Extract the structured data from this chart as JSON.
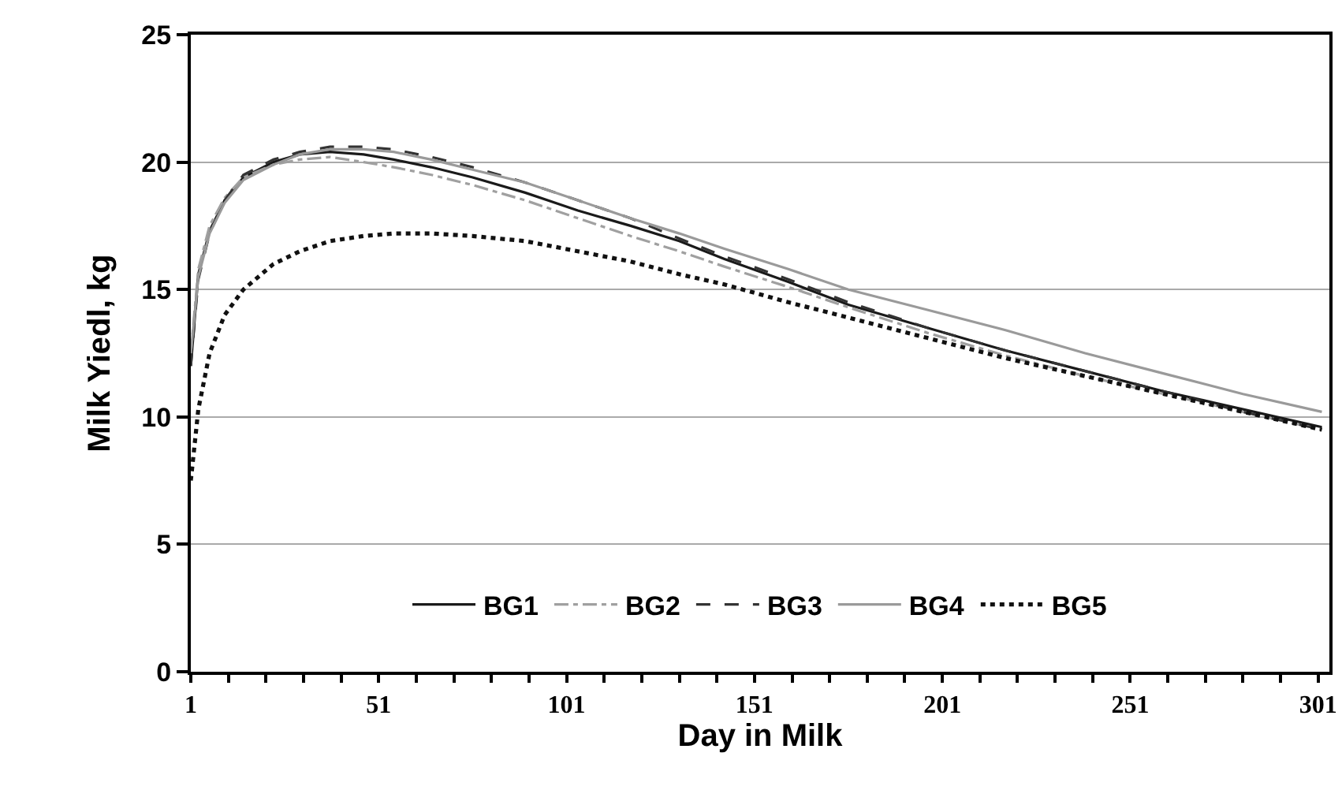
{
  "chart_data": {
    "type": "line",
    "xlabel": "Day in Milk",
    "ylabel": "Milk Yiedl, kg",
    "x": [
      1,
      3,
      6,
      10,
      15,
      23,
      30,
      38,
      47,
      55,
      65,
      76,
      90,
      104,
      118,
      131,
      143,
      160,
      176,
      197,
      218,
      239,
      260,
      281,
      302
    ],
    "series": [
      {
        "name": "BG1",
        "color": "#1a1a1a",
        "line_style": "solid",
        "values": [
          12,
          15.6,
          17.3,
          18.5,
          19.4,
          20.0,
          20.3,
          20.4,
          20.3,
          20.1,
          19.8,
          19.4,
          18.8,
          18.1,
          17.5,
          16.9,
          16.2,
          15.3,
          14.4,
          13.5,
          12.6,
          11.8,
          11.0,
          10.3,
          9.6
        ]
      },
      {
        "name": "BG2",
        "color": "#a0a0a0",
        "line_style": "dashdot",
        "values": [
          12.5,
          15.8,
          17.5,
          18.6,
          19.4,
          19.9,
          20.1,
          20.2,
          20.0,
          19.8,
          19.5,
          19.1,
          18.5,
          17.8,
          17.1,
          16.5,
          15.9,
          15.1,
          14.3,
          13.3,
          12.4,
          11.6,
          10.9,
          10.2,
          9.5
        ]
      },
      {
        "name": "BG3",
        "color": "#333333",
        "line_style": "dashed",
        "values": [
          12,
          15.4,
          17.2,
          18.5,
          19.5,
          20.1,
          20.4,
          20.6,
          20.6,
          20.5,
          20.2,
          19.8,
          19.2,
          18.5,
          17.8,
          17.0,
          16.3,
          15.4,
          14.5,
          13.5,
          12.6,
          11.8,
          11.0,
          10.2,
          9.5
        ]
      },
      {
        "name": "BG4",
        "color": "#9a9a9a",
        "line_style": "solid",
        "values": [
          12.5,
          15.5,
          17.2,
          18.4,
          19.3,
          19.9,
          20.3,
          20.5,
          20.5,
          20.4,
          20.1,
          19.7,
          19.2,
          18.5,
          17.8,
          17.2,
          16.6,
          15.8,
          15.0,
          14.2,
          13.4,
          12.5,
          11.7,
          10.9,
          10.2
        ]
      },
      {
        "name": "BG5",
        "color": "#111111",
        "line_style": "dotted",
        "values": [
          7.5,
          10.3,
          12.5,
          14.0,
          15.0,
          16.0,
          16.5,
          16.9,
          17.1,
          17.2,
          17.2,
          17.1,
          16.9,
          16.5,
          16.1,
          15.6,
          15.2,
          14.5,
          13.9,
          13.1,
          12.3,
          11.6,
          10.9,
          10.2,
          9.5
        ]
      }
    ],
    "xlim": [
      1,
      304
    ],
    "xticks": [
      1,
      {
        "value": 11,
        "label": null
      },
      {
        "value": 21,
        "label": null
      },
      {
        "value": 31,
        "label": null
      },
      {
        "value": 41,
        "label": null
      },
      51,
      {
        "value": 61,
        "label": null
      },
      {
        "value": 71,
        "label": null
      },
      {
        "value": 81,
        "label": null
      },
      {
        "value": 91,
        "label": null
      },
      101,
      {
        "value": 111,
        "label": null
      },
      {
        "value": 121,
        "label": null
      },
      {
        "value": 131,
        "label": null
      },
      {
        "value": 141,
        "label": null
      },
      151,
      {
        "value": 161,
        "label": null
      },
      {
        "value": 171,
        "label": null
      },
      {
        "value": 181,
        "label": null
      },
      {
        "value": 191,
        "label": null
      },
      201,
      {
        "value": 211,
        "label": null
      },
      {
        "value": 221,
        "label": null
      },
      {
        "value": 231,
        "label": null
      },
      {
        "value": 241,
        "label": null
      },
      251,
      {
        "value": 261,
        "label": null
      },
      {
        "value": 271,
        "label": null
      },
      {
        "value": 281,
        "label": null
      },
      {
        "value": 291,
        "label": null
      },
      301
    ],
    "ylim": [
      0,
      25
    ],
    "yticks": [
      0,
      5,
      10,
      15,
      20,
      25
    ],
    "grid": "y",
    "legend": "bottom",
    "marker": "none"
  }
}
